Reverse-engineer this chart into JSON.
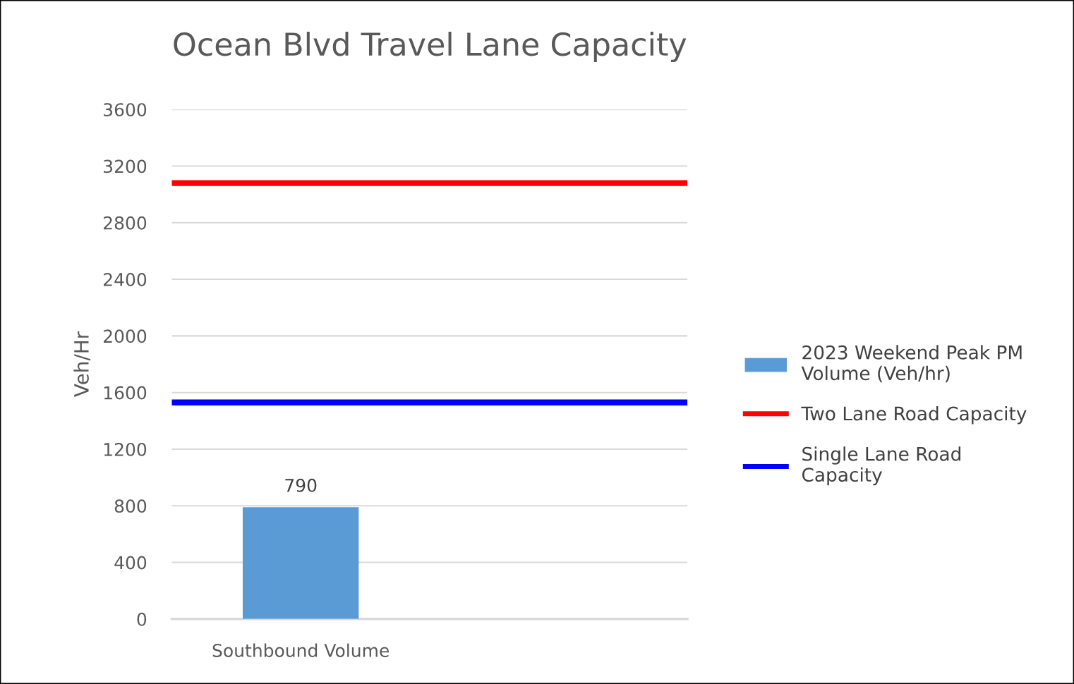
{
  "chart_data": {
    "type": "bar",
    "title": "Ocean Blvd Travel Lane Capacity",
    "ylabel": "Veh/Hr",
    "categories": [
      "Southbound Volume",
      null
    ],
    "series": [
      {
        "name": "2023 Weekend Peak PM Volume (Veh/hr)",
        "color": "#5b9bd5",
        "values": [
          790,
          null
        ]
      }
    ],
    "data_labels": true,
    "ref_lines": [
      {
        "axis": "y",
        "value": 3080,
        "label": "Two Lane Road Capacity",
        "color": "#ff0000",
        "line_style": "solid"
      },
      {
        "axis": "y",
        "value": 1530,
        "label": "Single Lane Road Capacity",
        "color": "#0000ff",
        "line_style": "solid"
      }
    ],
    "ylim": [
      0,
      3600
    ],
    "yticks": [
      0,
      400,
      800,
      1200,
      1600,
      2000,
      2400,
      2800,
      3200,
      3600
    ],
    "grid": "y",
    "legend": "right"
  }
}
